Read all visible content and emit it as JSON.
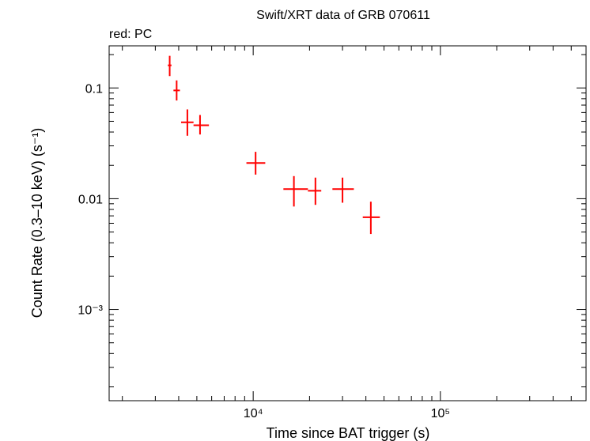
{
  "chart_data": {
    "type": "scatter",
    "title": "Swift/XRT data of GRB 070611",
    "subtitle": "red: PC",
    "xlabel": "Time since BAT trigger (s)",
    "ylabel": "Count Rate (0.3–10 keV) (s⁻¹)",
    "x_scale": "log",
    "y_scale": "log",
    "xlim": [
      1700,
      600000
    ],
    "ylim": [
      0.00015,
      0.24
    ],
    "x_ticks": [
      {
        "value": 10000,
        "label": "10⁴"
      },
      {
        "value": 100000,
        "label": "10⁵"
      }
    ],
    "y_ticks": [
      {
        "value": 0.1,
        "label": "0.1"
      },
      {
        "value": 0.01,
        "label": "0.01"
      },
      {
        "value": 0.001,
        "label": "10⁻³"
      }
    ],
    "grid": false,
    "series": [
      {
        "color": "#ff0000",
        "points": [
          {
            "x": 3580,
            "x_lo": 3500,
            "x_hi": 3660,
            "y": 0.16,
            "y_lo": 0.128,
            "y_hi": 0.195
          },
          {
            "x": 3900,
            "x_lo": 3750,
            "x_hi": 4060,
            "y": 0.095,
            "y_lo": 0.077,
            "y_hi": 0.117
          },
          {
            "x": 4450,
            "x_lo": 4120,
            "x_hi": 4800,
            "y": 0.049,
            "y_lo": 0.037,
            "y_hi": 0.064
          },
          {
            "x": 5200,
            "x_lo": 4800,
            "x_hi": 5800,
            "y": 0.046,
            "y_lo": 0.038,
            "y_hi": 0.057
          },
          {
            "x": 10300,
            "x_lo": 9200,
            "x_hi": 11600,
            "y": 0.021,
            "y_lo": 0.0165,
            "y_hi": 0.0265
          },
          {
            "x": 16500,
            "x_lo": 14500,
            "x_hi": 19600,
            "y": 0.0122,
            "y_lo": 0.0085,
            "y_hi": 0.016
          },
          {
            "x": 21500,
            "x_lo": 19600,
            "x_hi": 23100,
            "y": 0.0118,
            "y_lo": 0.0088,
            "y_hi": 0.0155
          },
          {
            "x": 30000,
            "x_lo": 26500,
            "x_hi": 34500,
            "y": 0.0122,
            "y_lo": 0.0092,
            "y_hi": 0.0155
          },
          {
            "x": 42500,
            "x_lo": 38500,
            "x_hi": 47500,
            "y": 0.0068,
            "y_lo": 0.0048,
            "y_hi": 0.0094
          }
        ]
      }
    ]
  }
}
